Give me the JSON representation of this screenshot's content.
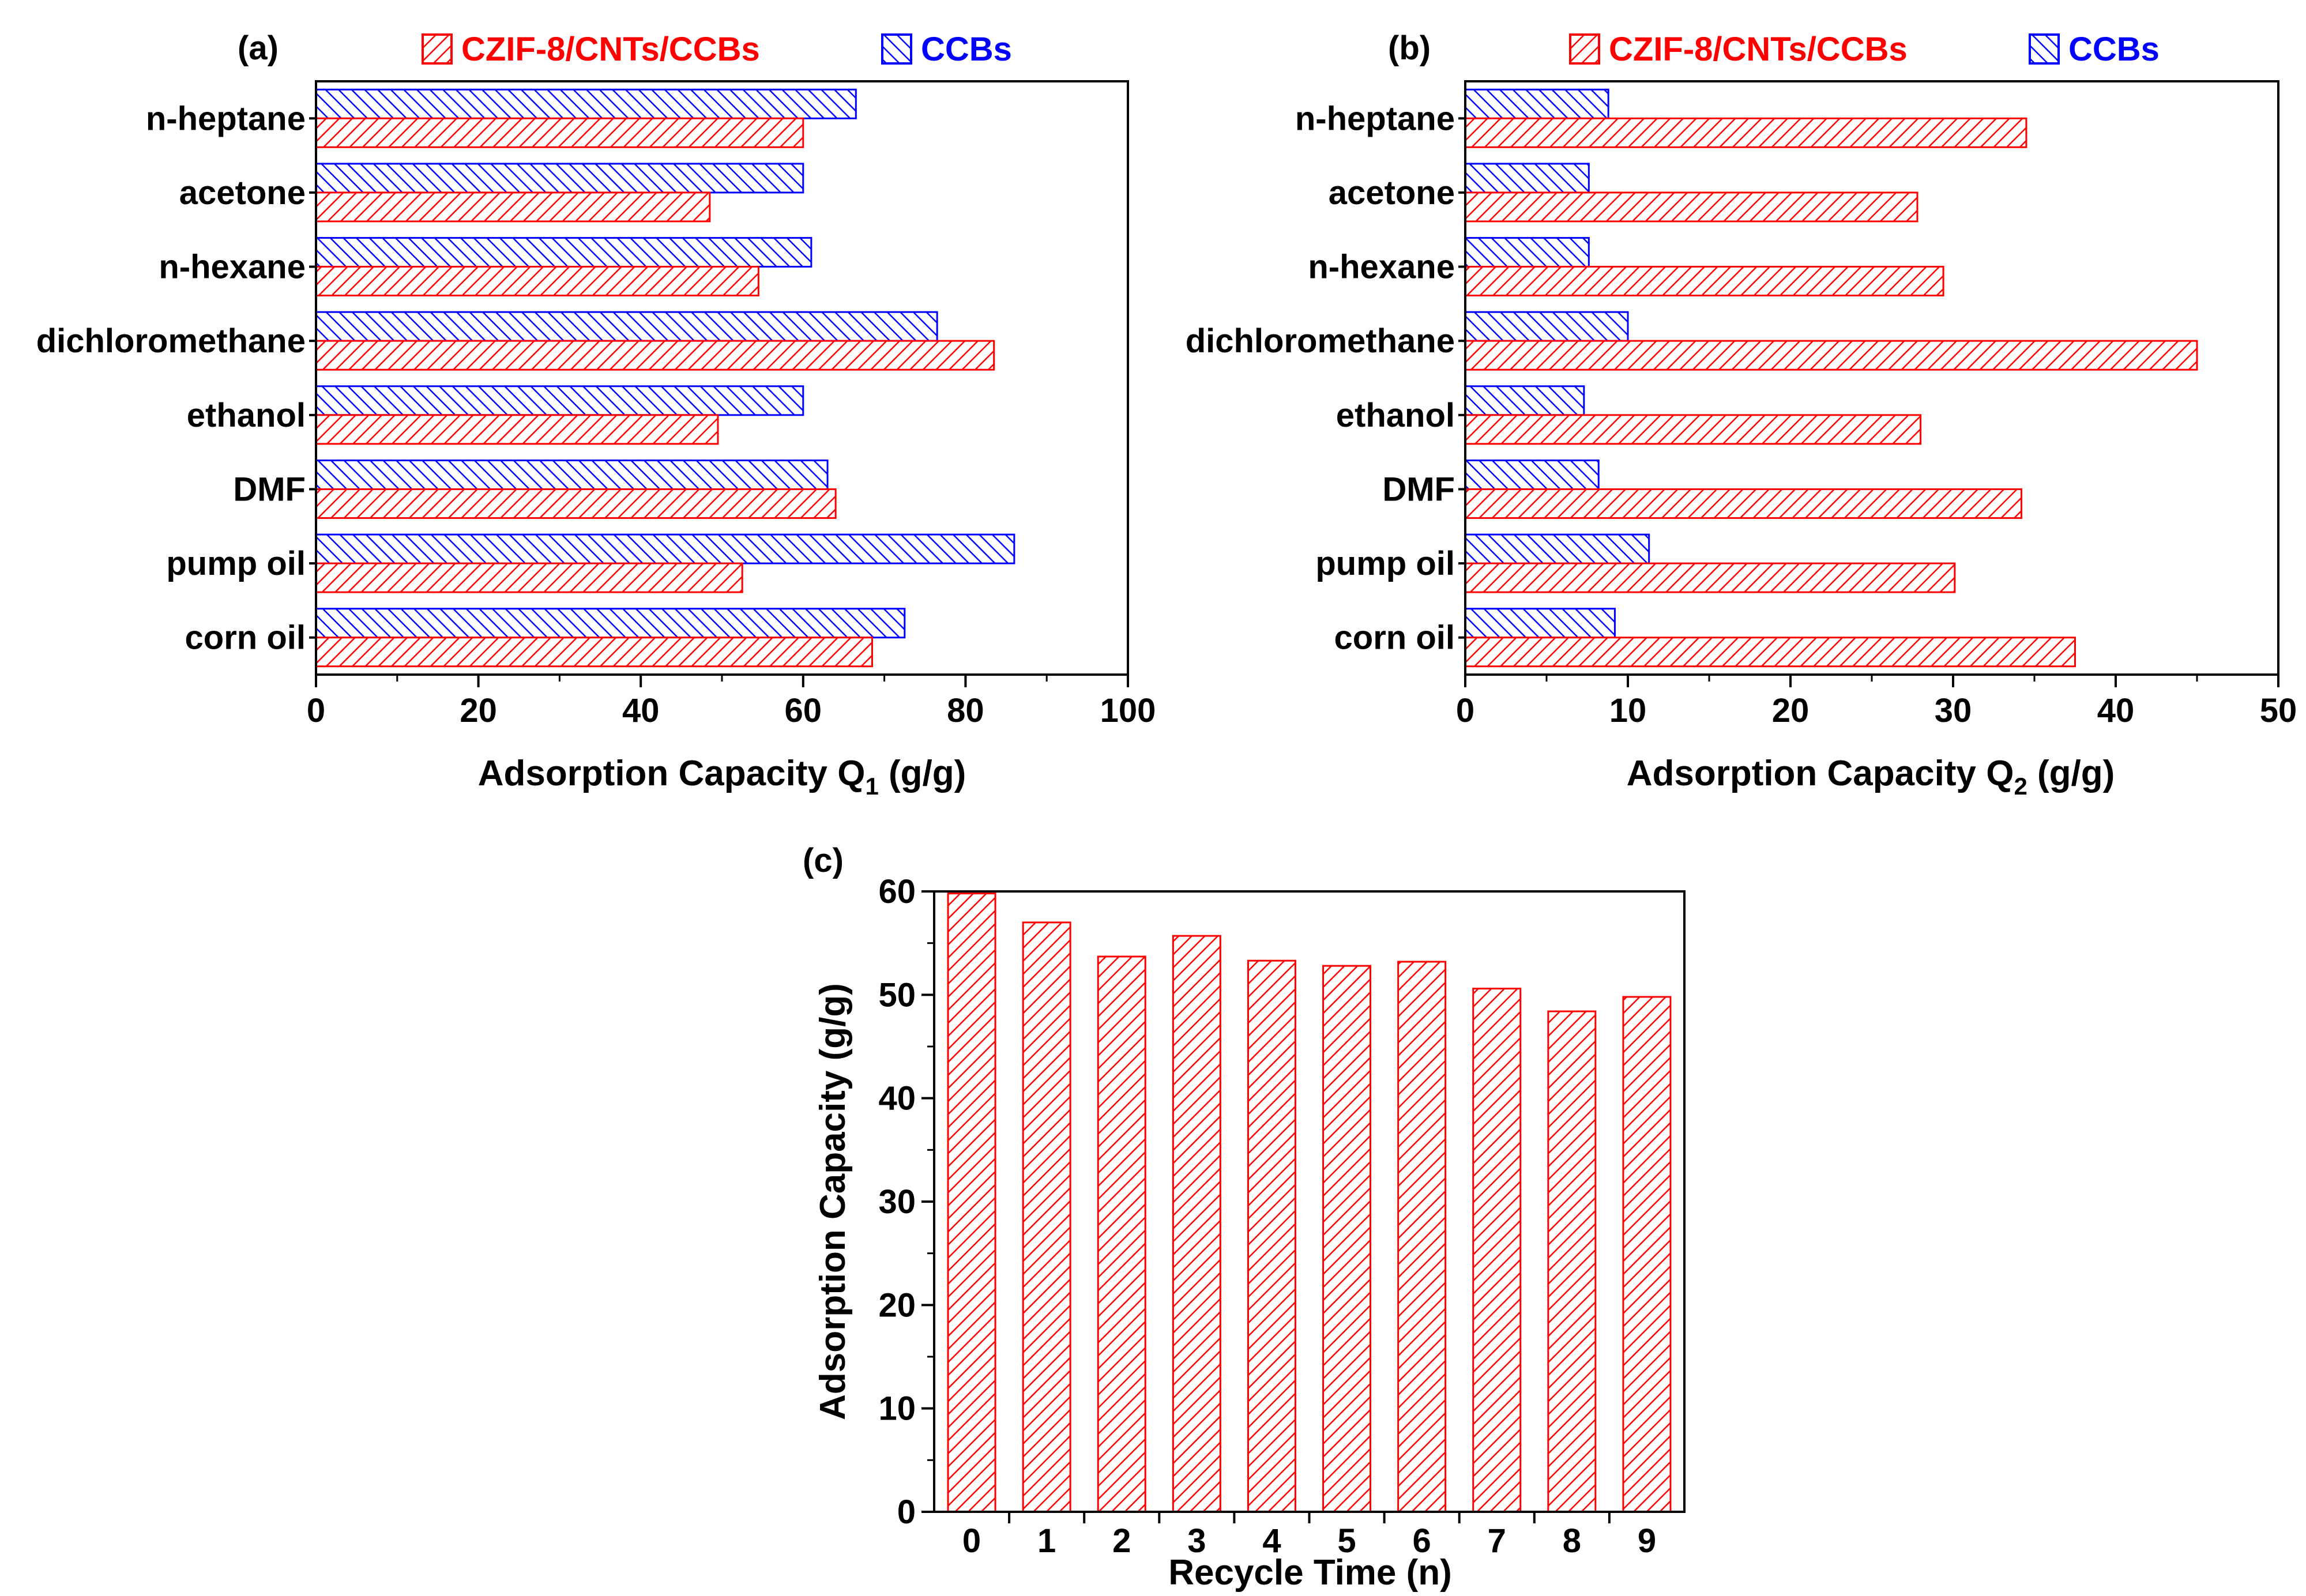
{
  "colors": {
    "czif": "#ff0000",
    "ccbs": "#0000ff",
    "axis": "#000000"
  },
  "chart_data": [
    {
      "panel": "(a)",
      "type": "bar",
      "orientation": "horizontal",
      "categories": [
        "n-heptane",
        "acetone",
        "n-hexane",
        "dichloromethane",
        "ethanol",
        "DMF",
        "pump oil",
        "corn oil"
      ],
      "series": [
        {
          "name": "CZIF-8/CNTs/CCBs",
          "values": [
            60,
            48.5,
            54.5,
            83.5,
            49.5,
            64,
            52.5,
            68.5
          ]
        },
        {
          "name": "CCBs",
          "values": [
            66.5,
            60,
            61,
            76.5,
            60,
            63,
            86,
            72.5
          ]
        }
      ],
      "xlabel_main": "Adsorption Capacity Q",
      "xlabel_sub": "1",
      "xlabel_tail": " (g/g)",
      "xlim": [
        0,
        100
      ],
      "xticks": [
        0,
        20,
        40,
        60,
        80,
        100
      ],
      "legend": "top"
    },
    {
      "panel": "(b)",
      "type": "bar",
      "orientation": "horizontal",
      "categories": [
        "n-heptane",
        "acetone",
        "n-hexane",
        "dichloromethane",
        "ethanol",
        "DMF",
        "pump oil",
        "corn oil"
      ],
      "series": [
        {
          "name": "CZIF-8/CNTs/CCBs",
          "values": [
            34.5,
            27.8,
            29.4,
            45,
            28,
            34.2,
            30.1,
            37.5
          ]
        },
        {
          "name": "CCBs",
          "values": [
            8.8,
            7.6,
            7.6,
            10,
            7.3,
            8.2,
            11.3,
            9.2
          ]
        }
      ],
      "xlabel_main": "Adsorption Capacity Q",
      "xlabel_sub": "2",
      "xlabel_tail": " (g/g)",
      "xlim": [
        0,
        50
      ],
      "xticks": [
        0,
        10,
        20,
        30,
        40,
        50
      ],
      "legend": "top"
    },
    {
      "panel": "(c)",
      "type": "bar",
      "orientation": "vertical",
      "categories": [
        "0",
        "1",
        "2",
        "3",
        "4",
        "5",
        "6",
        "7",
        "8",
        "9"
      ],
      "series": [
        {
          "name": "CZIF-8/CNTs/CCBs",
          "values": [
            59.8,
            57,
            53.7,
            55.7,
            53.3,
            52.8,
            53.2,
            50.6,
            48.4,
            49.8
          ]
        }
      ],
      "xlabel": "Recycle Time (n)",
      "ylabel": "Adsorption Capacity (g/g)",
      "ylim": [
        0,
        60
      ],
      "yticks": [
        0,
        10,
        20,
        30,
        40,
        50,
        60
      ]
    }
  ]
}
